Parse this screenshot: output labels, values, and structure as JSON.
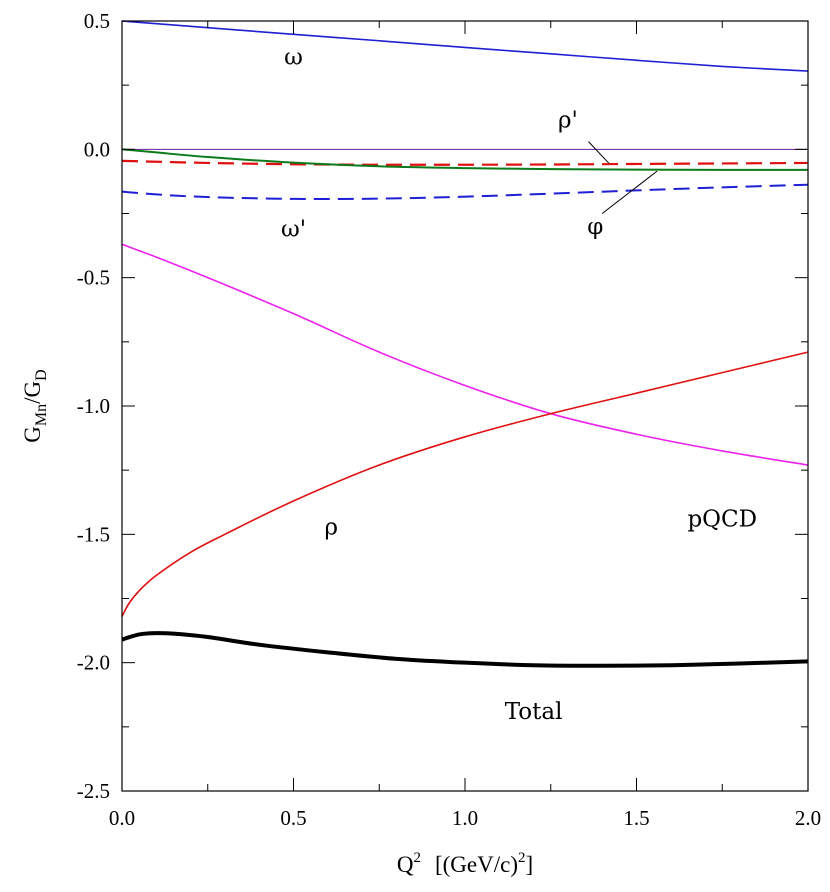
{
  "chart_data": {
    "type": "line",
    "x_label": {
      "main": "Q",
      "sup": "2",
      "rest": "[(GeV/c)",
      "sup2": "2",
      "close": "]"
    },
    "y_label": {
      "g": "G",
      "sub1": "Mn",
      "slash": "/G",
      "sub2": "D"
    },
    "xlim": [
      0,
      2.0
    ],
    "ylim": [
      -2.5,
      0.5
    ],
    "x_ticks": [
      "0.0",
      "0.5",
      "1.0",
      "1.5",
      "2.0"
    ],
    "y_ticks": [
      "0.5",
      "0.0",
      "-0.5",
      "-1.0",
      "-1.5",
      "-2.0",
      "-2.5"
    ],
    "grid": false,
    "series": [
      {
        "name": "ω",
        "color": "#1f1fd6",
        "dash": "solid",
        "width": 1.6,
        "x": [
          0,
          0.25,
          0.5,
          0.75,
          1.0,
          1.25,
          1.5,
          1.75,
          2.0
        ],
        "y": [
          0.5,
          0.474,
          0.448,
          0.423,
          0.397,
          0.372,
          0.347,
          0.323,
          0.305
        ]
      },
      {
        "name": "",
        "color": "#6a1fa0",
        "dash": "solid",
        "width": 1.0,
        "x": [
          0,
          2.0
        ],
        "y": [
          0.0,
          0.0
        ]
      },
      {
        "name": "ρ'",
        "color": "#e01010",
        "dash": "dashed",
        "width": 2.2,
        "x": [
          0,
          0.25,
          0.5,
          0.75,
          1.0,
          1.25,
          1.5,
          1.75,
          2.0
        ],
        "y": [
          -0.045,
          -0.053,
          -0.058,
          -0.06,
          -0.06,
          -0.059,
          -0.057,
          -0.055,
          -0.053
        ]
      },
      {
        "name": "φ",
        "color": "#0a7a1a",
        "dash": "solid",
        "width": 2.0,
        "x": [
          0,
          0.1,
          0.25,
          0.5,
          0.75,
          1.0,
          1.25,
          1.5,
          1.75,
          2.0
        ],
        "y": [
          0.0,
          -0.012,
          -0.03,
          -0.052,
          -0.066,
          -0.073,
          -0.077,
          -0.079,
          -0.08,
          -0.08
        ]
      },
      {
        "name": "ω'",
        "color": "#1f1fd6",
        "dash": "dashed",
        "width": 2.0,
        "x": [
          0,
          0.15,
          0.3,
          0.5,
          0.7,
          0.9,
          1.1,
          1.3,
          1.5,
          1.75,
          2.0
        ],
        "y": [
          -0.165,
          -0.18,
          -0.188,
          -0.193,
          -0.193,
          -0.188,
          -0.18,
          -0.17,
          -0.16,
          -0.148,
          -0.138
        ]
      },
      {
        "name": "pQCD",
        "color": "#ee22ee",
        "dash": "solid",
        "width": 1.6,
        "x": [
          0,
          0.1,
          0.25,
          0.5,
          0.75,
          1.0,
          1.25,
          1.5,
          1.75,
          2.0
        ],
        "y": [
          -0.37,
          -0.42,
          -0.5,
          -0.64,
          -0.79,
          -0.92,
          -1.03,
          -1.11,
          -1.175,
          -1.23
        ]
      },
      {
        "name": "ρ",
        "color": "#e01010",
        "dash": "solid",
        "width": 1.6,
        "x": [
          0,
          0.02,
          0.05,
          0.1,
          0.2,
          0.3,
          0.5,
          0.75,
          1.0,
          1.25,
          1.5,
          1.75,
          2.0
        ],
        "y": [
          -1.82,
          -1.77,
          -1.72,
          -1.66,
          -1.57,
          -1.5,
          -1.37,
          -1.23,
          -1.12,
          -1.03,
          -0.95,
          -0.87,
          -0.79
        ]
      },
      {
        "name": "Total",
        "color": "#000000",
        "dash": "solid",
        "width": 4.0,
        "x": [
          0,
          0.05,
          0.1,
          0.15,
          0.25,
          0.4,
          0.6,
          0.8,
          1.0,
          1.2,
          1.4,
          1.6,
          1.8,
          2.0
        ],
        "y": [
          -1.91,
          -1.89,
          -1.885,
          -1.887,
          -1.9,
          -1.93,
          -1.96,
          -1.985,
          -2.0,
          -2.01,
          -2.012,
          -2.01,
          -2.003,
          -1.995
        ]
      }
    ],
    "annotations": [
      {
        "text": "ω",
        "x": 0.5,
        "y": 0.33
      },
      {
        "text": "ρ'",
        "x": 1.3,
        "y": 0.085
      },
      {
        "text": "ω'",
        "x": 0.5,
        "y": -0.34
      },
      {
        "text": "φ",
        "x": 1.38,
        "y": -0.33
      },
      {
        "text": "pQCD",
        "x": 1.75,
        "y": -1.47
      },
      {
        "text": "ρ",
        "x": 0.61,
        "y": -1.5
      },
      {
        "text": "Total",
        "x": 1.2,
        "y": -2.22
      }
    ],
    "leaders": [
      {
        "from": [
          1.36,
          0.03
        ],
        "to": [
          1.42,
          -0.055
        ]
      },
      {
        "from": [
          1.4,
          -0.25
        ],
        "to": [
          1.56,
          -0.085
        ]
      }
    ]
  }
}
